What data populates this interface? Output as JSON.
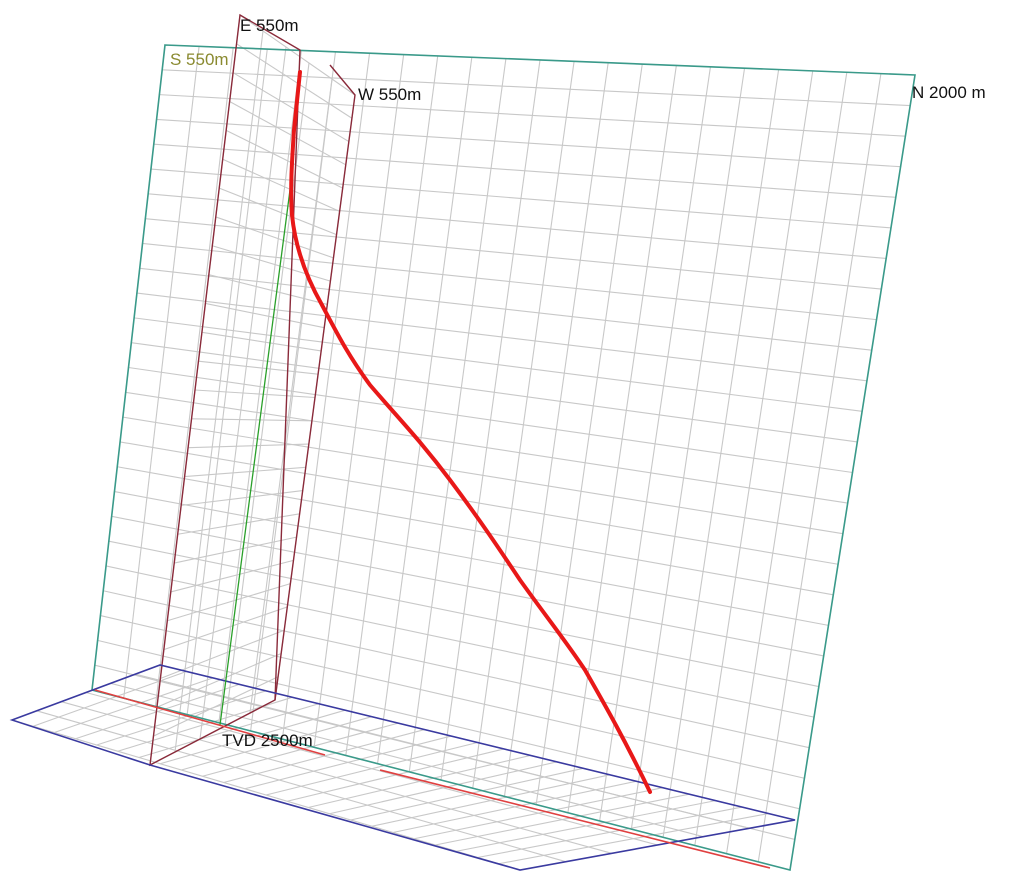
{
  "labels": {
    "east": "E 550m",
    "south": "S 550m",
    "west": "W 550m",
    "north": "N 2000 m",
    "tvd": "TVD 2500m"
  },
  "colors": {
    "well_path": "#e81818",
    "north_plane_frame": "#3a9a8a",
    "east_west_plane_frame": "#8a2a3a",
    "base_plane_frame": "#3a3aa0",
    "vertical_reference": "#2aa02a",
    "base_reference_line": "#e04040",
    "grid": "#c8c8c8",
    "south_label": "#8a8a30"
  }
}
